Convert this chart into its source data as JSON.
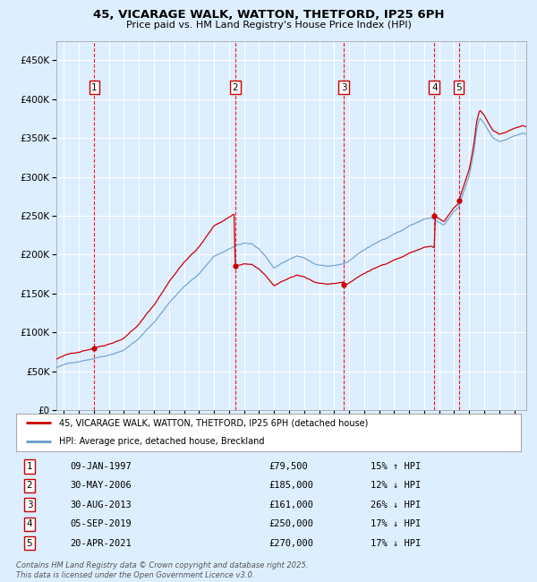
{
  "title": "45, VICARAGE WALK, WATTON, THETFORD, IP25 6PH",
  "subtitle": "Price paid vs. HM Land Registry's House Price Index (HPI)",
  "legend_line1": "45, VICARAGE WALK, WATTON, THETFORD, IP25 6PH (detached house)",
  "legend_line2": "HPI: Average price, detached house, Breckland",
  "footer": "Contains HM Land Registry data © Crown copyright and database right 2025.\nThis data is licensed under the Open Government Licence v3.0.",
  "transactions": [
    {
      "num": 1,
      "date": "09-JAN-1997",
      "price": 79500,
      "pct": "15%",
      "dir": "↑",
      "rel": "HPI"
    },
    {
      "num": 2,
      "date": "30-MAY-2006",
      "price": 185000,
      "pct": "12%",
      "dir": "↓",
      "rel": "HPI"
    },
    {
      "num": 3,
      "date": "30-AUG-2013",
      "price": 161000,
      "pct": "26%",
      "dir": "↓",
      "rel": "HPI"
    },
    {
      "num": 4,
      "date": "05-SEP-2019",
      "price": 250000,
      "pct": "17%",
      "dir": "↓",
      "rel": "HPI"
    },
    {
      "num": 5,
      "date": "20-APR-2021",
      "price": 270000,
      "pct": "17%",
      "dir": "↓",
      "rel": "HPI"
    }
  ],
  "transaction_dates_decimal": [
    1997.03,
    2006.41,
    2013.66,
    2019.68,
    2021.3
  ],
  "transaction_prices": [
    79500,
    185000,
    161000,
    250000,
    270000
  ],
  "hpi_color": "#6699cc",
  "price_color": "#cc0000",
  "bg_color": "#ddeeff",
  "plot_bg": "#ddeeff",
  "grid_color": "#ffffff",
  "dashed_line_color": "#ff0000",
  "ylim": [
    0,
    475000
  ],
  "yticks": [
    0,
    50000,
    100000,
    150000,
    200000,
    250000,
    300000,
    350000,
    400000,
    450000
  ],
  "xlim_start": 1994.5,
  "xlim_end": 2025.8
}
